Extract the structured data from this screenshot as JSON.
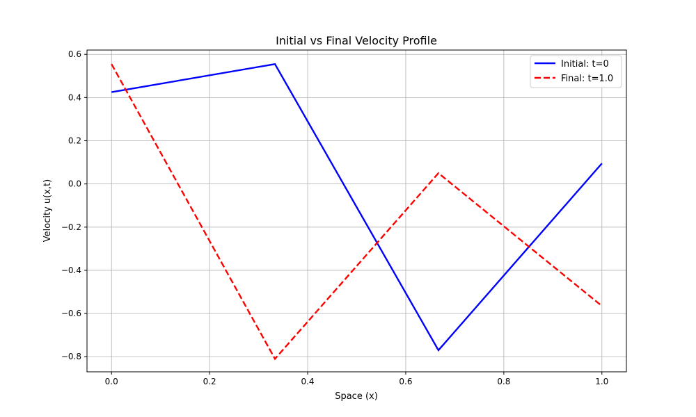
{
  "chart_data": {
    "type": "line",
    "title": "Initial vs Final Velocity Profile",
    "xlabel": "Space (x)",
    "ylabel": "Velocity u(x,t)",
    "xlim": [
      -0.05,
      1.05
    ],
    "ylim": [
      -0.87,
      0.62
    ],
    "xticks": [
      0.0,
      0.2,
      0.4,
      0.6,
      0.8,
      1.0
    ],
    "xtick_labels": [
      "0.0",
      "0.2",
      "0.4",
      "0.6",
      "0.8",
      "1.0"
    ],
    "yticks": [
      -0.8,
      -0.6,
      -0.4,
      -0.2,
      0.0,
      0.2,
      0.4,
      0.6
    ],
    "ytick_labels": [
      "−0.8",
      "−0.6",
      "−0.4",
      "−0.2",
      "0.0",
      "0.2",
      "0.4",
      "0.6"
    ],
    "grid": true,
    "legend_position": "top-right",
    "x": [
      0.0,
      0.3333,
      0.6667,
      1.0
    ],
    "series": [
      {
        "name": "Initial: t=0",
        "values": [
          0.425,
          0.555,
          -0.77,
          0.095
        ],
        "color": "#0000ff",
        "style": "solid"
      },
      {
        "name": "Final: t=1.0",
        "values": [
          0.555,
          -0.81,
          0.05,
          -0.565
        ],
        "color": "#ff0000",
        "style": "dashed"
      }
    ]
  }
}
